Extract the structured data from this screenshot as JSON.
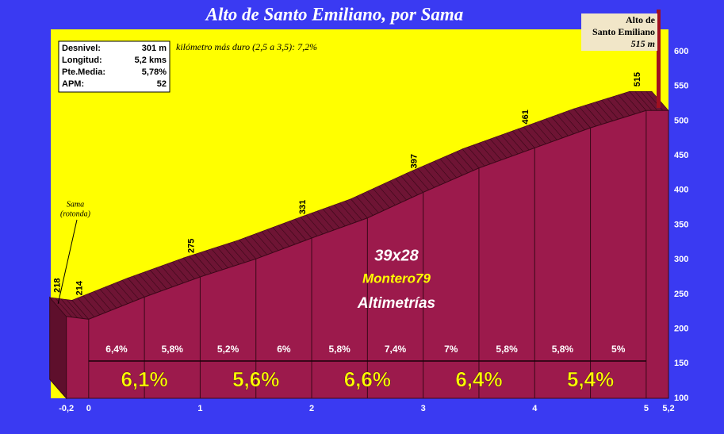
{
  "chart_data": {
    "type": "profile",
    "title": "Alto de Santo Emiliano, por Sama",
    "info": [
      {
        "label": "Desnivel:",
        "value": "301 m"
      },
      {
        "label": "Longitud:",
        "value": "5,2 kms"
      },
      {
        "label": "Pte.Media:",
        "value": "5,78%"
      },
      {
        "label": "APM:",
        "value": "52"
      }
    ],
    "note": "kilómetro más duro (2,5 a 3,5):  7,2%",
    "summit_label": [
      "Alto de",
      "Santo Emiliano",
      "515 m"
    ],
    "start_label": [
      "Sama",
      "(rotonda)"
    ],
    "watermark": [
      "39x28",
      "Montero79",
      "Altimetrías"
    ],
    "x": [
      -0.2,
      0,
      0.5,
      1,
      1.5,
      2,
      2.5,
      3,
      3.5,
      4,
      4.5,
      5,
      5.2
    ],
    "values": [
      218,
      214,
      246,
      275,
      301,
      331,
      360,
      397,
      432,
      461,
      490,
      515,
      515
    ],
    "value_labels": [
      "218",
      "214",
      null,
      "275",
      null,
      "331",
      null,
      "397",
      null,
      "461",
      null,
      "515",
      null
    ],
    "grades_500m": {
      "values": [
        6.4,
        5.8,
        5.2,
        6,
        5.8,
        7.4,
        7,
        5.8,
        5.8,
        5
      ],
      "value_labels": [
        "6,4%",
        "5,8%",
        "5,2%",
        "6%",
        "5,8%",
        "7,4%",
        "7%",
        "5,8%",
        "5,8%",
        "5%"
      ]
    },
    "grades_km": {
      "values": [
        6.1,
        5.6,
        6.6,
        6.4,
        5.4
      ],
      "value_labels": [
        "6,1%",
        "5,6%",
        "6,6%",
        "6,4%",
        "5,4%"
      ]
    },
    "xlim": [
      -0.34,
      5.2
    ],
    "xticks": [
      {
        "value": -0.2,
        "label": "-0,2"
      },
      0,
      1,
      2,
      3,
      4,
      5,
      {
        "value": 5.2,
        "label": "5,2"
      }
    ],
    "ylim": [
      100,
      632
    ],
    "yticks": [
      100,
      150,
      200,
      250,
      300,
      350,
      400,
      450,
      500,
      550,
      600
    ],
    "colors": {
      "background": "#3a3af2",
      "plot": "#ffff00",
      "front": "#9c1a4c",
      "top": "#6e1434",
      "side": "#5e0f2c"
    }
  }
}
